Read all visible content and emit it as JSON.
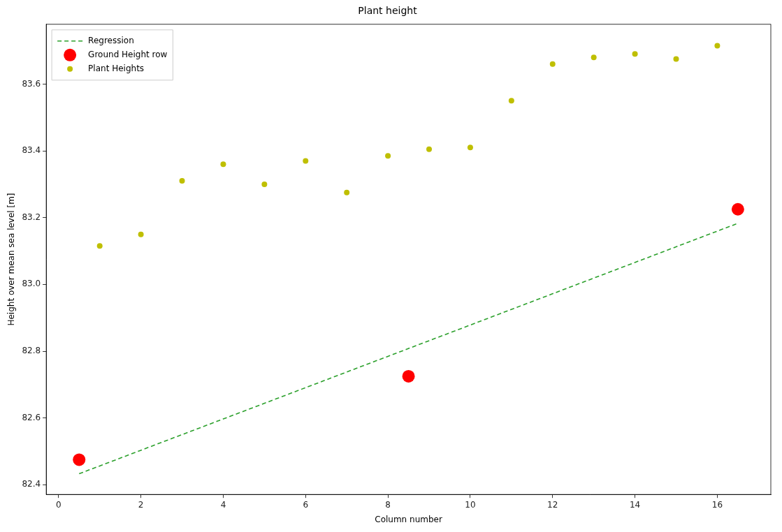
{
  "chart_data": {
    "type": "scatter",
    "title": "Plant height",
    "x_label": "Column number",
    "y_label": "Height over mean sea level [m]",
    "xlim": [
      -0.3,
      17.3
    ],
    "xticks": [
      0,
      2,
      4,
      6,
      8,
      10,
      12,
      14,
      16
    ],
    "ylim": [
      82.371,
      83.779
    ],
    "yticks": [
      82.4,
      82.6,
      82.8,
      {
        "value": 83,
        "label": "83.0"
      },
      83.2,
      83.4,
      83.6
    ],
    "grid": false,
    "legend": "upper left",
    "series": [
      {
        "name": "Regression",
        "type": "line",
        "color": "#2ca02c",
        "line_style": "dashed",
        "x": [
          0.5,
          16.5
        ],
        "values": [
          82.433,
          83.183
        ]
      },
      {
        "name": "Ground Height row",
        "type": "scatter",
        "color": "#ff0000",
        "marker": "o",
        "x": [
          0.5,
          8.5,
          16.5
        ],
        "values": [
          82.475,
          82.725,
          83.225
        ]
      },
      {
        "name": "Plant Heights",
        "type": "scatter",
        "color": "#bfbf00",
        "marker": ".",
        "x": [
          1,
          2,
          3,
          4,
          5,
          6,
          7,
          8,
          9,
          10,
          11,
          12,
          13,
          14,
          15,
          16
        ],
        "values": [
          83.115,
          83.15,
          83.31,
          83.36,
          83.3,
          83.37,
          83.275,
          83.385,
          83.405,
          83.41,
          83.55,
          83.66,
          83.68,
          83.69,
          83.675,
          83.715
        ]
      }
    ]
  }
}
